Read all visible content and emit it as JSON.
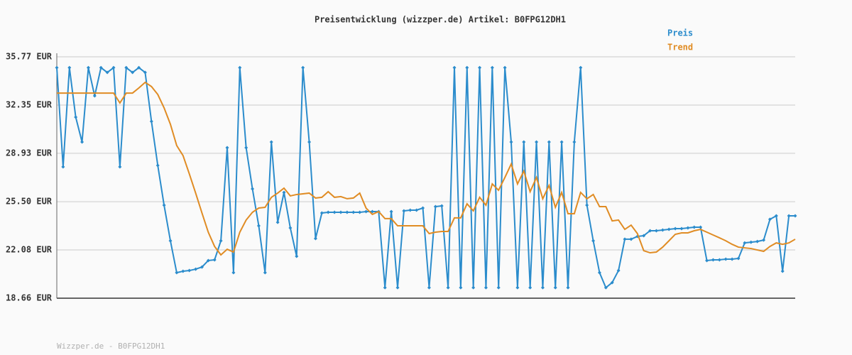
{
  "chart_data": {
    "type": "line",
    "title": "Preisentwicklung (wizzper.de) Artikel: B0FPG12DH1",
    "footer": "Wizzper.de - B0FPG12DH1",
    "ylim": [
      18.66,
      35.77
    ],
    "yticks": [
      {
        "value": 18.66,
        "label": "18.66 EUR"
      },
      {
        "value": 22.08,
        "label": "22.08 EUR"
      },
      {
        "value": 25.5,
        "label": "25.50 EUR"
      },
      {
        "value": 28.93,
        "label": "28.93 EUR"
      },
      {
        "value": 32.35,
        "label": "32.35 EUR"
      },
      {
        "value": 35.77,
        "label": "35.77 EUR"
      }
    ],
    "grid": true,
    "legend": "top-right",
    "series": [
      {
        "name": "Preis",
        "color": "#2b8ccc",
        "markers": true,
        "values": [
          35.0,
          27.97,
          35.0,
          31.49,
          29.73,
          35.0,
          33.0,
          35.0,
          34.66,
          35.0,
          27.97,
          35.0,
          34.66,
          35.0,
          34.66,
          31.19,
          28.07,
          25.25,
          22.73,
          20.47,
          20.57,
          20.62,
          20.72,
          20.87,
          21.33,
          21.38,
          22.73,
          29.33,
          20.47,
          35.0,
          29.33,
          26.41,
          23.79,
          20.47,
          29.73,
          24.04,
          26.16,
          23.64,
          21.63,
          35.0,
          29.73,
          22.89,
          24.7,
          24.75,
          24.75,
          24.75,
          24.75,
          24.75,
          24.75,
          24.8,
          24.8,
          24.8,
          19.41,
          24.8,
          19.41,
          24.85,
          24.9,
          24.9,
          25.05,
          19.41,
          25.15,
          25.2,
          19.41,
          35.0,
          19.41,
          35.0,
          19.41,
          35.0,
          19.41,
          35.0,
          19.41,
          35.0,
          29.73,
          19.41,
          29.73,
          19.41,
          29.73,
          19.41,
          29.73,
          19.41,
          29.73,
          19.41,
          29.73,
          35.0,
          25.25,
          22.73,
          20.47,
          19.41,
          19.77,
          20.62,
          22.84,
          22.84,
          23.04,
          23.09,
          23.44,
          23.44,
          23.49,
          23.54,
          23.59,
          23.59,
          23.64,
          23.69,
          23.69,
          21.33,
          21.38,
          21.38,
          21.43,
          21.43,
          21.48,
          22.58,
          22.63,
          22.68,
          22.78,
          24.25,
          24.5,
          20.57,
          24.5,
          24.5
        ]
      },
      {
        "name": "Trend",
        "color": "#e08c24",
        "markers": false,
        "values": [
          33.2,
          33.2,
          33.2,
          33.2,
          33.2,
          33.2,
          33.2,
          33.2,
          33.2,
          33.2,
          32.5,
          33.2,
          33.2,
          33.56,
          33.96,
          33.66,
          33.1,
          32.15,
          30.99,
          29.48,
          28.77,
          27.47,
          26.11,
          24.7,
          23.34,
          22.33,
          21.73,
          22.13,
          21.93,
          23.34,
          24.2,
          24.75,
          25.05,
          25.1,
          25.81,
          26.11,
          26.46,
          25.91,
          26.01,
          26.06,
          26.11,
          25.76,
          25.81,
          26.21,
          25.81,
          25.86,
          25.71,
          25.76,
          26.11,
          25.05,
          24.6,
          24.8,
          24.3,
          24.3,
          23.79,
          23.79,
          23.79,
          23.79,
          23.79,
          23.24,
          23.34,
          23.39,
          23.39,
          24.35,
          24.35,
          25.35,
          24.85,
          25.81,
          25.25,
          26.76,
          26.31,
          27.22,
          28.17,
          26.76,
          27.67,
          26.21,
          27.22,
          25.71,
          26.66,
          25.1,
          26.16,
          24.65,
          24.65,
          26.16,
          25.71,
          26.01,
          25.15,
          25.15,
          24.14,
          24.2,
          23.54,
          23.84,
          23.24,
          22.03,
          21.88,
          21.93,
          22.28,
          22.73,
          23.19,
          23.29,
          23.29,
          23.44,
          23.54,
          23.34,
          23.14,
          22.94,
          22.73,
          22.48,
          22.28,
          22.23,
          22.18,
          22.08,
          21.98,
          22.33,
          22.58,
          22.48,
          22.58,
          22.84
        ]
      }
    ]
  }
}
